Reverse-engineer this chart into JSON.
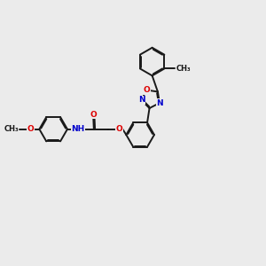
{
  "bg_color": "#ebebeb",
  "bond_color": "#1a1a1a",
  "bond_width": 1.4,
  "dbo": 0.04,
  "r_benz": 0.55,
  "r_penta": 0.38,
  "atom_colors": {
    "O": "#dd0000",
    "N": "#0000cc",
    "C": "#1a1a1a"
  },
  "fs": 6.5,
  "xlim": [
    0,
    10
  ],
  "ylim": [
    0,
    10
  ]
}
